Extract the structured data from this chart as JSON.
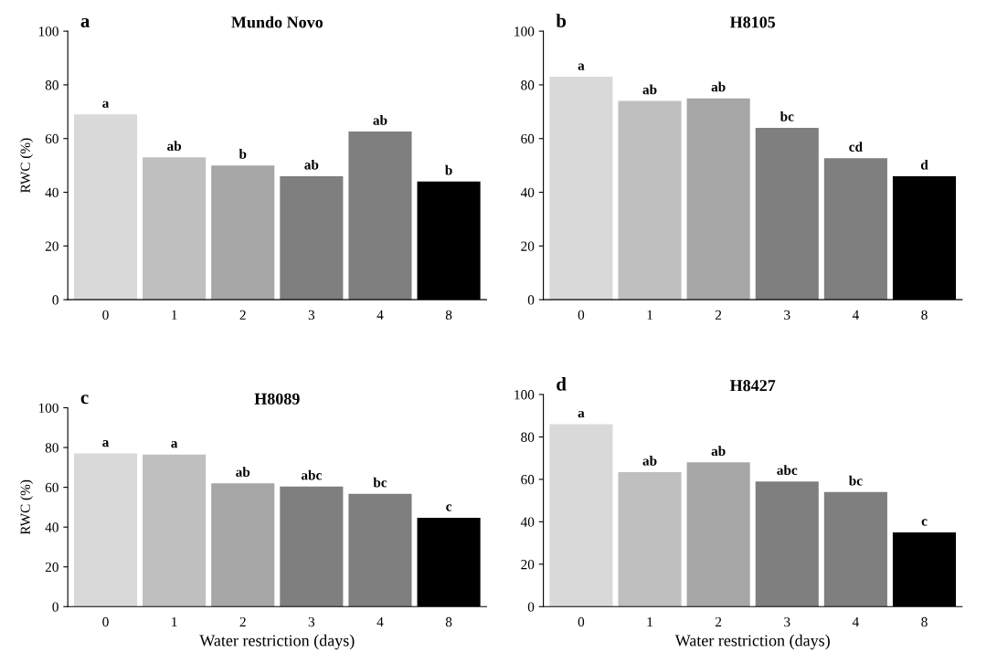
{
  "chart_data": [
    {
      "type": "bar",
      "title": "Mundo Novo",
      "annotations": [
        "a"
      ],
      "ylabel": "RWC (%)",
      "categories": [
        "0",
        "1",
        "2",
        "3",
        "4",
        "8"
      ],
      "values": [
        69,
        53,
        50,
        46,
        62.6,
        44
      ],
      "colors": [
        "#d9d9d9",
        "#bfbfbf",
        "#a6a6a6",
        "#7f7f7f",
        "#7f7f7f",
        "#000000"
      ],
      "value_labels": [
        "a",
        "ab",
        "b",
        "ab",
        "ab",
        "b"
      ],
      "ylim": [
        0,
        100
      ],
      "yticks": [
        0,
        20,
        40,
        60,
        80,
        100
      ],
      "grid": false,
      "legend": false
    },
    {
      "type": "bar",
      "title": "H8105",
      "annotations": [
        "b"
      ],
      "categories": [
        "0",
        "1",
        "2",
        "3",
        "4",
        "8"
      ],
      "values": [
        83,
        74,
        75,
        64,
        52.7,
        46
      ],
      "colors": [
        "#d9d9d9",
        "#bfbfbf",
        "#a6a6a6",
        "#7f7f7f",
        "#7f7f7f",
        "#000000"
      ],
      "value_labels": [
        "a",
        "ab",
        "ab",
        "bc",
        "cd",
        "d"
      ],
      "ylim": [
        0,
        100
      ],
      "yticks": [
        0,
        20,
        40,
        60,
        80,
        100
      ],
      "grid": false,
      "legend": false
    },
    {
      "type": "bar",
      "title": "H8089",
      "annotations": [
        "c"
      ],
      "ylabel": "RWC (%)",
      "xlabel": "Water restriction (days)",
      "categories": [
        "0",
        "1",
        "2",
        "3",
        "4",
        "8"
      ],
      "values": [
        77,
        76.5,
        62,
        60.4,
        56.7,
        44.7
      ],
      "colors": [
        "#d9d9d9",
        "#bfbfbf",
        "#a6a6a6",
        "#7f7f7f",
        "#7f7f7f",
        "#000000"
      ],
      "value_labels": [
        "a",
        "a",
        "ab",
        "abc",
        "bc",
        "c"
      ],
      "ylim": [
        0,
        100
      ],
      "yticks": [
        0,
        20,
        40,
        60,
        80,
        100
      ],
      "grid": false,
      "legend": false
    },
    {
      "type": "bar",
      "title": "H8427",
      "annotations": [
        "d"
      ],
      "xlabel": "Water restriction (days)",
      "categories": [
        "0",
        "1",
        "2",
        "3",
        "4",
        "8"
      ],
      "values": [
        86,
        63.4,
        68,
        59,
        54,
        35
      ],
      "colors": [
        "#d9d9d9",
        "#bfbfbf",
        "#a6a6a6",
        "#7f7f7f",
        "#7f7f7f",
        "#000000"
      ],
      "value_labels": [
        "a",
        "ab",
        "ab",
        "abc",
        "bc",
        "c"
      ],
      "ylim": [
        0,
        100
      ],
      "yticks": [
        0,
        20,
        40,
        60,
        80,
        100
      ],
      "grid": false,
      "legend": false
    }
  ]
}
